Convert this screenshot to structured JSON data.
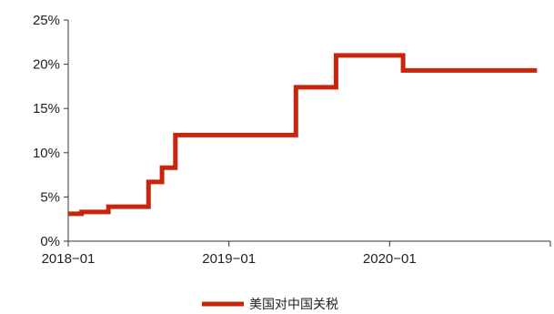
{
  "chart_data": {
    "type": "line",
    "step": true,
    "x_start": "2018-01",
    "x_end": "2020-12",
    "ylim": [
      0,
      25
    ],
    "y_ticks": [
      0,
      5,
      10,
      15,
      20,
      25
    ],
    "y_tick_labels": [
      "0%",
      "5%",
      "10%",
      "15%",
      "20%",
      "25%"
    ],
    "x_ticks": [
      "2018-01",
      "2019-01",
      "2020-01"
    ],
    "x_tick_labels": [
      "2018−01",
      "2019−01",
      "2020−01"
    ],
    "grid": false,
    "legend_position": "bottom",
    "series": [
      {
        "name": "美国对中国关税",
        "color": "#c8250c",
        "points": [
          [
            "2018-01",
            3.1
          ],
          [
            "2018-02",
            3.3
          ],
          [
            "2018-04",
            3.9
          ],
          [
            "2018-07",
            6.7
          ],
          [
            "2018-08",
            8.3
          ],
          [
            "2018-09",
            12.0
          ],
          [
            "2019-06",
            17.4
          ],
          [
            "2019-09",
            21.0
          ],
          [
            "2020-02",
            19.3
          ],
          [
            "2020-12",
            19.3
          ]
        ]
      }
    ]
  }
}
